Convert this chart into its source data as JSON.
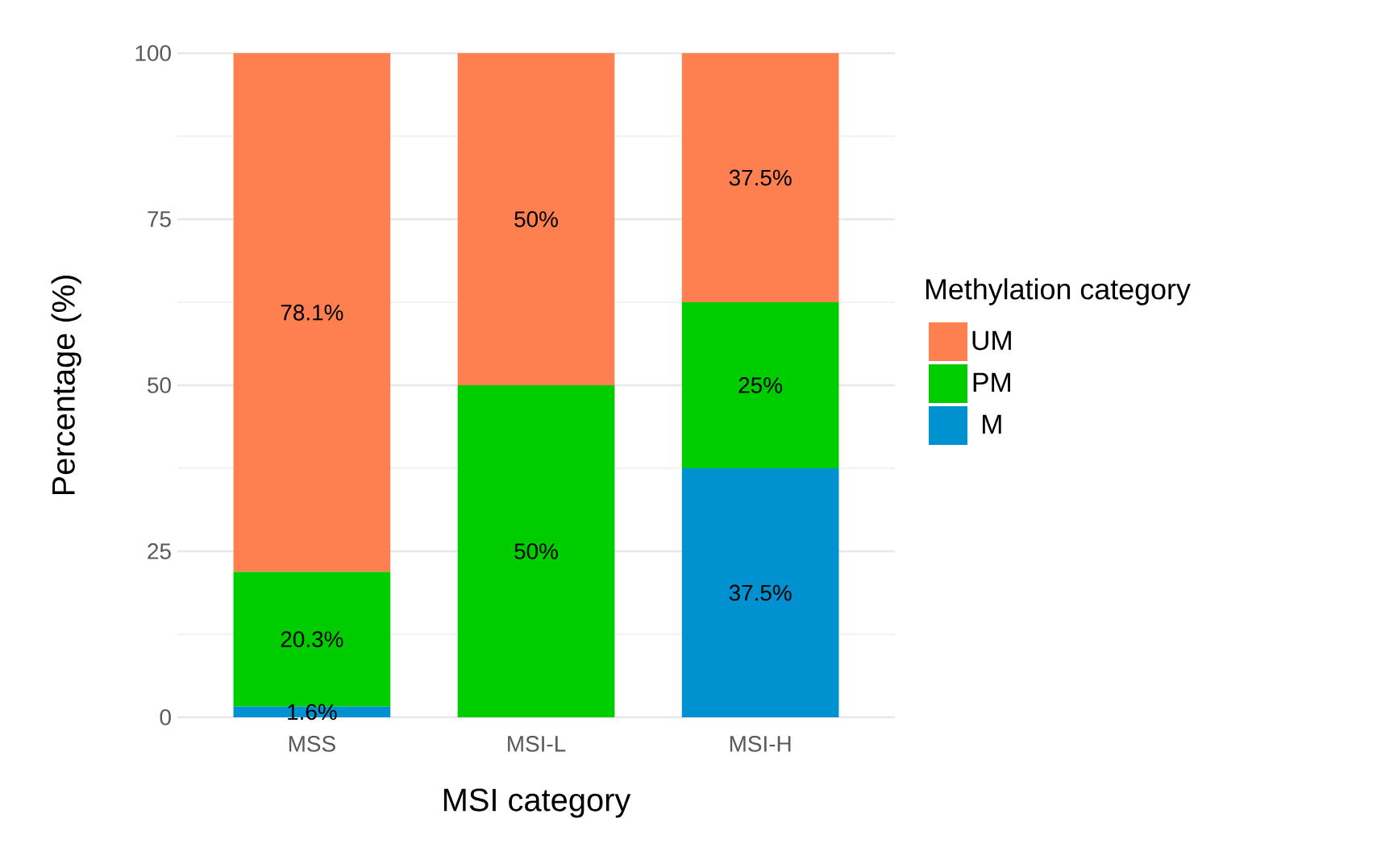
{
  "chart_data": {
    "type": "bar",
    "stacked": true,
    "xlabel": "MSI category",
    "ylabel": "Percentage (%)",
    "legend_title": "Methylation category",
    "categories": [
      "MSS",
      "MSI-L",
      "MSI-H"
    ],
    "series": [
      {
        "name": "M",
        "color": "#0091d0",
        "values": [
          1.6,
          0,
          37.5
        ],
        "value_labels": [
          "1.6%",
          null,
          "37.5%"
        ]
      },
      {
        "name": "PM",
        "color": "#00cd00",
        "values": [
          20.3,
          50,
          25
        ],
        "value_labels": [
          "20.3%",
          "50%",
          "25%"
        ]
      },
      {
        "name": "UM",
        "color": "#fe7f4f",
        "values": [
          78.1,
          50,
          37.5
        ],
        "value_labels": [
          "78.1%",
          "50%",
          "37.5%"
        ]
      }
    ],
    "ylim": [
      0,
      100
    ],
    "yticks": [
      0,
      25,
      50,
      75,
      100
    ],
    "grid": true,
    "legend": "right"
  }
}
